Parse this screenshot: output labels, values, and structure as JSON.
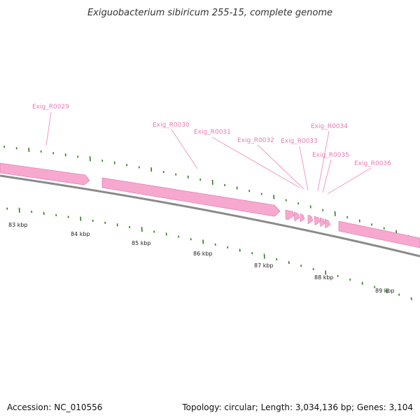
{
  "title": "Exiguobacterium sibiricum 255-15, complete genome",
  "footer": {
    "accession": "Accession: NC_010556",
    "summary": "Topology: circular; Length: 3,034,136 bp; Genes: 3,104"
  },
  "colors": {
    "gene_fill": "#f7a8cf",
    "gene_shade": "#d96ea6",
    "label": "#e879b5",
    "backbone": "#777777",
    "gc_tick": "#2e7d1f"
  },
  "scale_labels": [
    "83 kbp",
    "84 kbp",
    "85 kbp",
    "86 kbp",
    "87 kbp",
    "88 kbp",
    "89 kbp"
  ],
  "genes": [
    {
      "name": "Exig_R0029"
    },
    {
      "name": "Exig_R0030"
    },
    {
      "name": "Exig_R0031"
    },
    {
      "name": "Exig_R0032"
    },
    {
      "name": "Exig_R0033"
    },
    {
      "name": "Exig_R0034"
    },
    {
      "name": "Exig_R0035"
    },
    {
      "name": "Exig_R0036"
    }
  ]
}
